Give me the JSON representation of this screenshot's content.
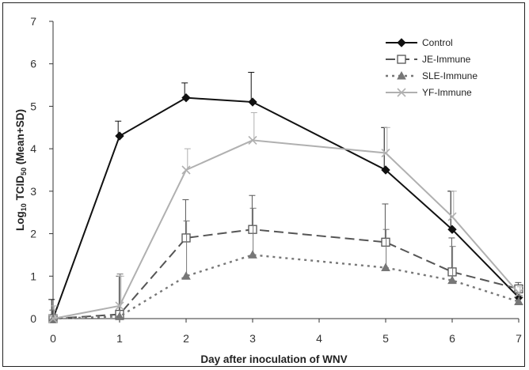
{
  "chart_data": {
    "type": "line",
    "title": "",
    "xlabel": "Day after inoculation of WNV",
    "ylabel_parts": {
      "prefix": "Log",
      "sub1": "10",
      "middle": " TCID",
      "sub2": "50",
      "suffix": " (Mean+SD)"
    },
    "x": [
      0,
      1,
      2,
      3,
      5,
      6,
      7
    ],
    "xlim": [
      0,
      7
    ],
    "ylim": [
      0,
      7
    ],
    "x_ticks": [
      "0",
      "1",
      "2",
      "3",
      "4",
      "5",
      "6",
      "7"
    ],
    "y_ticks": [
      "0",
      "1",
      "2",
      "3",
      "4",
      "5",
      "6",
      "7"
    ],
    "grid": false,
    "legend_position": "top-right",
    "series": [
      {
        "name": "Control",
        "color": "#111111",
        "style": "solid",
        "marker": "diamond",
        "values": [
          0,
          4.3,
          5.2,
          5.1,
          3.5,
          2.1,
          0.5
        ],
        "sd": [
          0.45,
          0.35,
          0.35,
          0.7,
          1.0,
          0.9,
          0.2
        ]
      },
      {
        "name": "JE-Immune",
        "color": "#555555",
        "style": "dashed",
        "marker": "square",
        "values": [
          0,
          0.1,
          1.9,
          2.1,
          1.8,
          1.1,
          0.7
        ],
        "sd": [
          0.2,
          0.9,
          0.9,
          0.8,
          0.9,
          0.8,
          0.15
        ]
      },
      {
        "name": "SLE-Immune",
        "color": "#777777",
        "style": "dotted",
        "marker": "triangle",
        "values": [
          0,
          0.05,
          1.0,
          1.5,
          1.2,
          0.9,
          0.4
        ],
        "sd": [
          0.2,
          1.0,
          1.3,
          1.1,
          0.9,
          0.8,
          0.15
        ]
      },
      {
        "name": "YF-Immune",
        "color": "#b0b0b0",
        "style": "solid",
        "marker": "x",
        "values": [
          0,
          0.3,
          3.5,
          4.2,
          3.9,
          2.4,
          0.6
        ],
        "sd": [
          0.3,
          0.7,
          0.5,
          0.65,
          0.6,
          0.6,
          0.15
        ]
      }
    ]
  }
}
